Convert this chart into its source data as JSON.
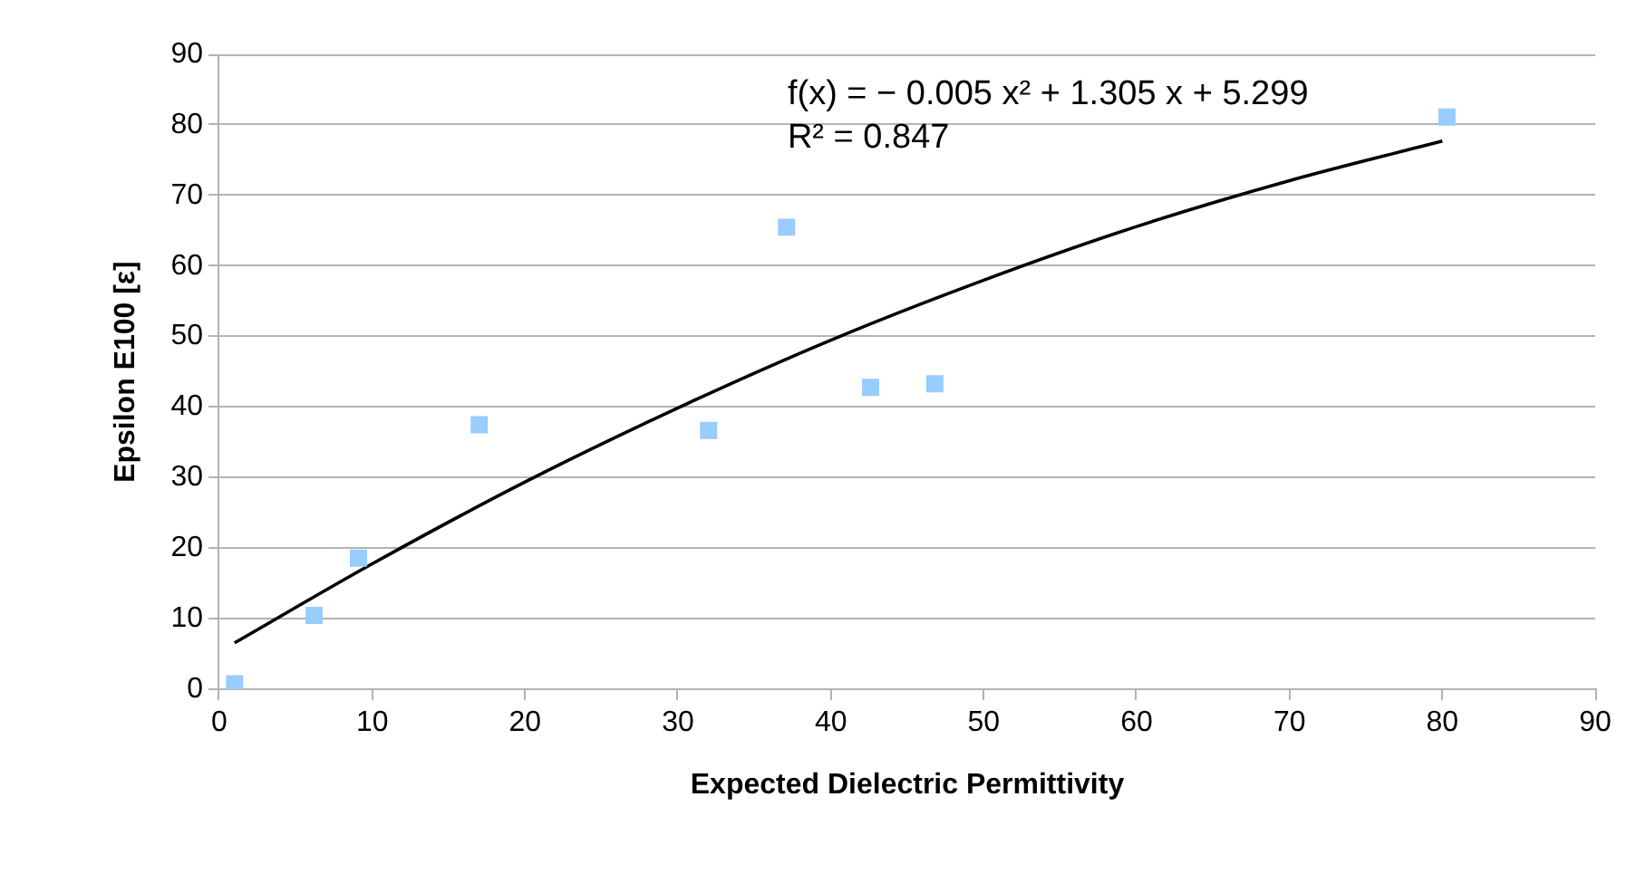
{
  "chart_data": {
    "type": "scatter",
    "xlabel": "Expected Dielectric Permittivity",
    "ylabel": "Epsilon E100 [ε]",
    "xlim": [
      0,
      90
    ],
    "xticks": [
      0,
      10,
      20,
      30,
      40,
      50,
      60,
      70,
      80,
      90
    ],
    "ylim": [
      0,
      90
    ],
    "yticks": [
      0,
      10,
      20,
      30,
      40,
      50,
      60,
      70,
      80,
      90
    ],
    "grid": "y",
    "legend": false,
    "marker": "square",
    "series": [
      {
        "type": "scatter",
        "color": "#99ccff",
        "x": [
          1,
          6.2,
          9.1,
          17,
          32,
          37.1,
          42.6,
          46.8,
          80.3
        ],
        "values": [
          0.8,
          10.5,
          18.6,
          37.5,
          36.7,
          65.5,
          42.8,
          43.3,
          81.1
        ]
      },
      {
        "type": "line",
        "color": "#000000",
        "marker": "none",
        "x": [
          1,
          10,
          20,
          30,
          40,
          50,
          60,
          70,
          80
        ],
        "values": [
          6.6,
          17.8,
          29.4,
          39.9,
          49.5,
          58.0,
          65.6,
          72.1,
          77.7
        ]
      }
    ],
    "annotations": [
      "f(x) = − 0.005 x² + 1.305 x + 5.299",
      "R² = 0.847"
    ]
  }
}
